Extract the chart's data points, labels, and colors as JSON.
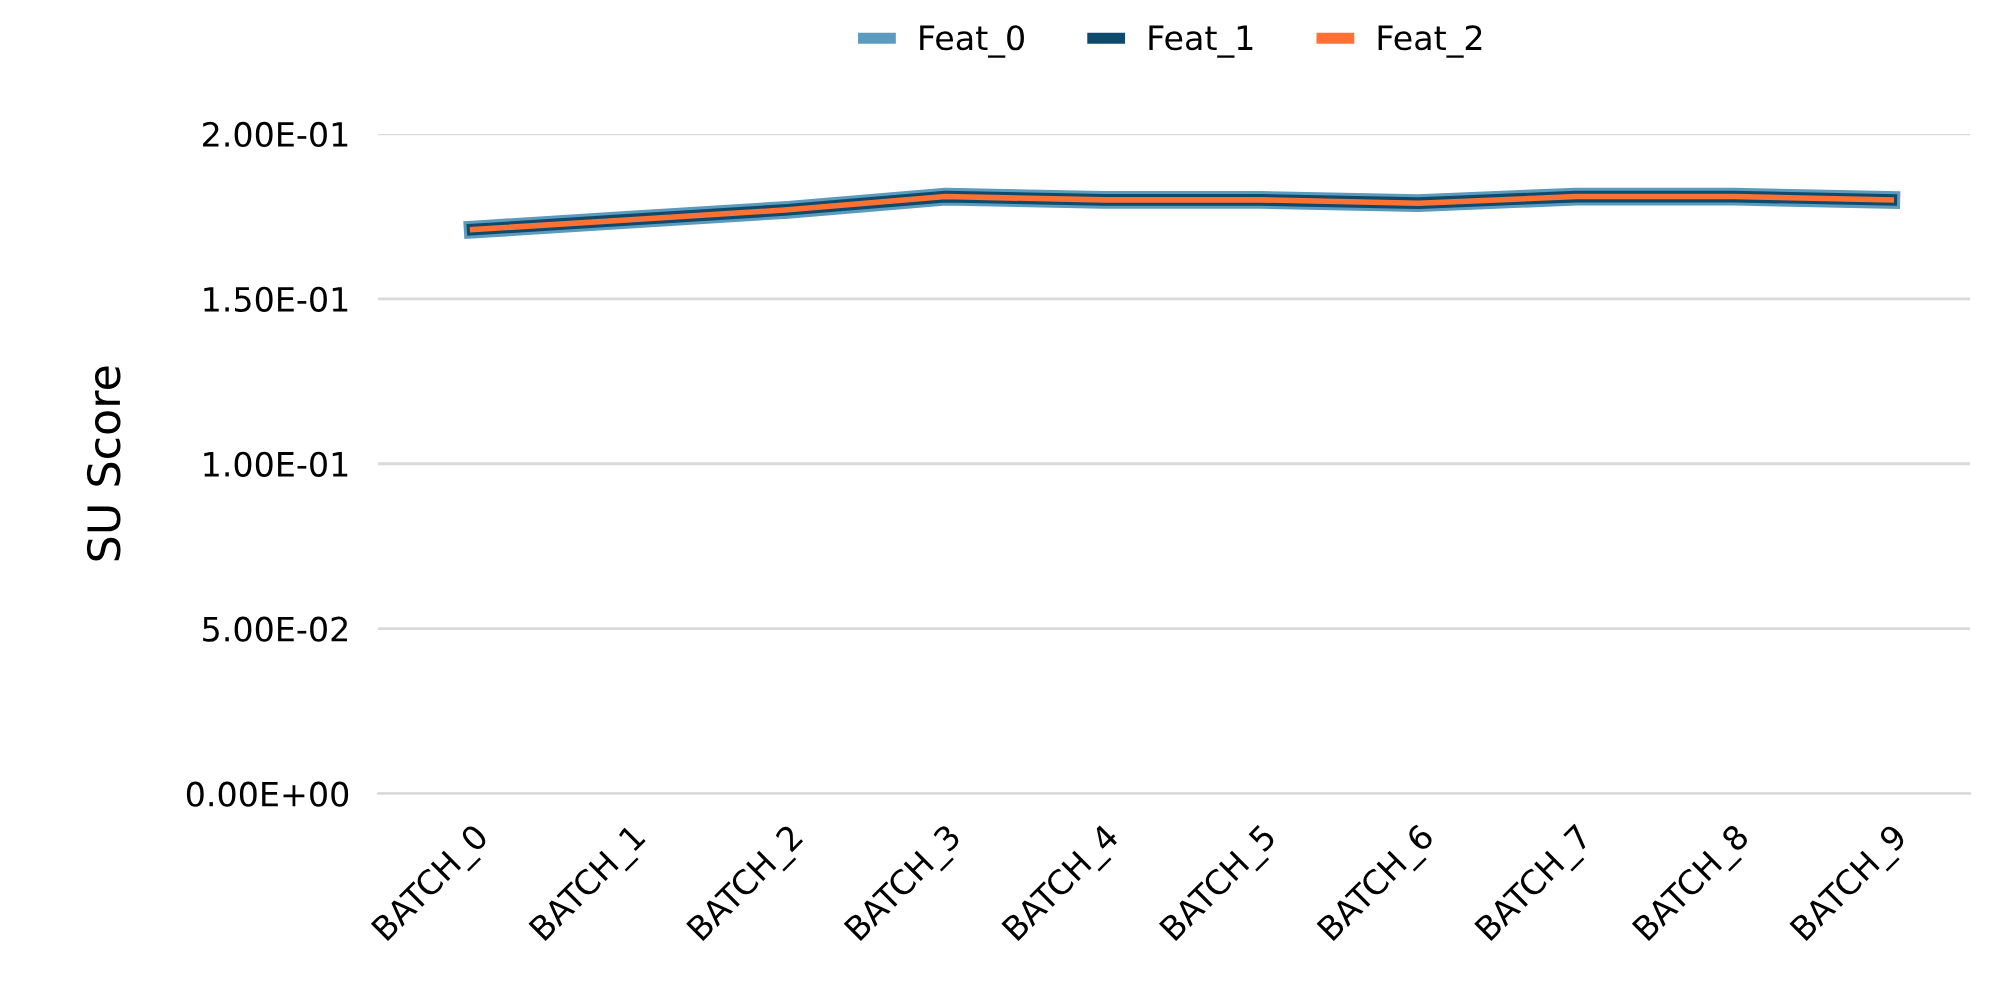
{
  "chart_data": {
    "type": "line",
    "ylabel": "SU Score",
    "categories": [
      "BATCH_0",
      "BATCH_1",
      "BATCH_2",
      "BATCH_3",
      "BATCH_4",
      "BATCH_5",
      "BATCH_6",
      "BATCH_7",
      "BATCH_8",
      "BATCH_9"
    ],
    "series": [
      {
        "name": "Feat_0",
        "color": "#5b9bbd",
        "values": [
          0.171,
          0.174,
          0.177,
          0.181,
          0.18,
          0.18,
          0.179,
          0.181,
          0.181,
          0.18
        ]
      },
      {
        "name": "Feat_1",
        "color": "#0e4a6b",
        "values": [
          0.171,
          0.174,
          0.177,
          0.181,
          0.18,
          0.18,
          0.179,
          0.181,
          0.181,
          0.18
        ]
      },
      {
        "name": "Feat_2",
        "color": "#ff7133",
        "values": [
          0.171,
          0.174,
          0.177,
          0.181,
          0.18,
          0.18,
          0.179,
          0.181,
          0.181,
          0.18
        ]
      }
    ],
    "ylim": [
      0,
      0.2
    ],
    "yticks": [
      {
        "value": 0,
        "label": "0.00E+00"
      },
      {
        "value": 0.05,
        "label": "5.00E-02"
      },
      {
        "value": 0.1,
        "label": "1.00E-01"
      },
      {
        "value": 0.15,
        "label": "1.50E-01"
      },
      {
        "value": 0.2,
        "label": "2.00E-01"
      }
    ],
    "grid": "y",
    "legend": "top",
    "marker": "none",
    "line_style": "solid"
  }
}
